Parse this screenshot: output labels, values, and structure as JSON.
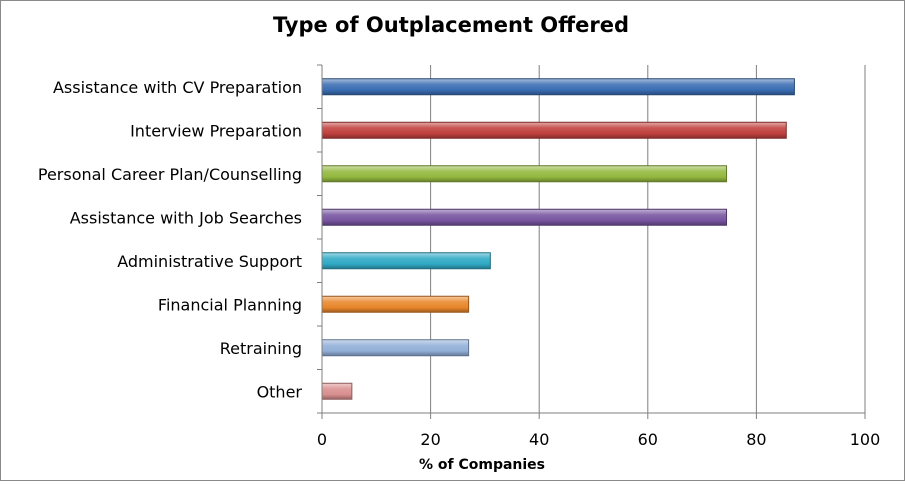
{
  "chart_data": {
    "type": "bar",
    "orientation": "horizontal",
    "title": "Type of Outplacement Offered",
    "xlabel": "% of Companies",
    "ylabel": "",
    "xlim": [
      0,
      100
    ],
    "xticks": [
      0,
      20,
      40,
      60,
      80,
      100
    ],
    "grid": true,
    "legend": false,
    "categories": [
      "Assistance with CV Preparation",
      "Interview Preparation",
      "Personal Career Plan/Counselling",
      "Assistance with Job Searches",
      "Administrative Support",
      "Financial Planning",
      "Retraining",
      "Other"
    ],
    "values": [
      87,
      85.5,
      74.5,
      74.5,
      31,
      27,
      27,
      5.5
    ],
    "colors": [
      "#3b6db3",
      "#c0403d",
      "#93b83e",
      "#7754a0",
      "#2fa9c5",
      "#e8862a",
      "#92afd8",
      "#d98f8f"
    ]
  }
}
